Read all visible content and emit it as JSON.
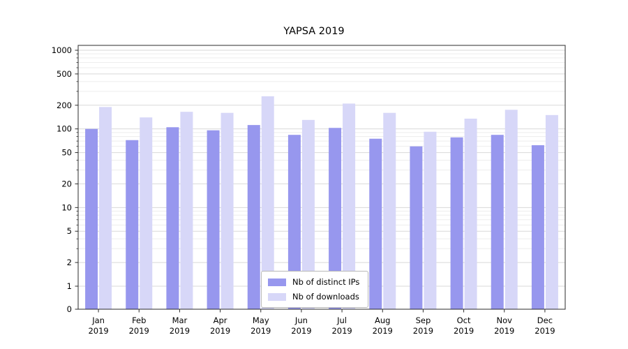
{
  "chart_data": {
    "type": "bar",
    "title": "YAPSA 2019",
    "scale": "symlog",
    "grid": true,
    "legend_position": "lower center",
    "categories": [
      "Jan",
      "Feb",
      "Mar",
      "Apr",
      "May",
      "Jun",
      "Jul",
      "Aug",
      "Sep",
      "Oct",
      "Nov",
      "Dec"
    ],
    "category_year": "2019",
    "yticks": [
      0,
      1,
      2,
      5,
      10,
      20,
      50,
      100,
      200,
      500,
      1000
    ],
    "ylim": [
      0,
      1000
    ],
    "series": [
      {
        "name": "Nb of distinct IPs",
        "color": "#9797ee",
        "values": [
          100,
          72,
          105,
          96,
          112,
          84,
          103,
          75,
          60,
          78,
          84,
          62
        ]
      },
      {
        "name": "Nb of downloads",
        "color": "#d7d7f8",
        "values": [
          190,
          140,
          165,
          160,
          260,
          130,
          210,
          160,
          92,
          135,
          175,
          150
        ]
      }
    ]
  }
}
